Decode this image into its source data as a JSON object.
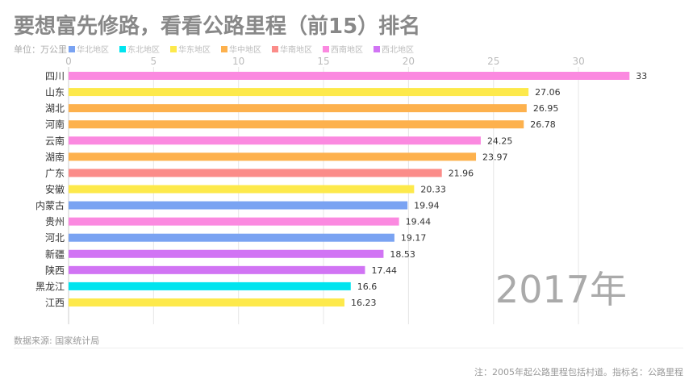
{
  "title": "要想富先修路，看看公路里程（前15）排名",
  "unit": "单位：万公里",
  "source": "数据来源: 国家统计局",
  "note": "注：2005年起公路里程包括村道。指标名：公路里程",
  "legend": [
    {
      "name": "华北地区",
      "color": "#7aa3f2"
    },
    {
      "name": "东北地区",
      "color": "#00e4ef"
    },
    {
      "name": "华东地区",
      "color": "#fde94b"
    },
    {
      "name": "华中地区",
      "color": "#fdb14d"
    },
    {
      "name": "华南地区",
      "color": "#fb8c89"
    },
    {
      "name": "西南地区",
      "color": "#fb89e0"
    },
    {
      "name": "西北地区",
      "color": "#d174f4"
    }
  ],
  "chart_data": {
    "type": "bar",
    "orientation": "horizontal",
    "year_label": "2017年",
    "xlim": [
      0,
      33
    ],
    "xticks": [
      0,
      5,
      10,
      15,
      20,
      25,
      30
    ],
    "grid": true,
    "legend_position": "top",
    "categories": [
      "四川",
      "山东",
      "湖北",
      "河南",
      "云南",
      "湖南",
      "广东",
      "安徽",
      "内蒙古",
      "贵州",
      "河北",
      "新疆",
      "陕西",
      "黑龙江",
      "江西"
    ],
    "values": [
      33,
      27.06,
      26.95,
      26.78,
      24.25,
      23.97,
      21.96,
      20.33,
      19.94,
      19.44,
      19.17,
      18.53,
      17.44,
      16.6,
      16.23
    ],
    "regions": [
      "西南地区",
      "华东地区",
      "华中地区",
      "华中地区",
      "西南地区",
      "华中地区",
      "华南地区",
      "华东地区",
      "华北地区",
      "西南地区",
      "华北地区",
      "西北地区",
      "西北地区",
      "东北地区",
      "华东地区"
    ]
  }
}
